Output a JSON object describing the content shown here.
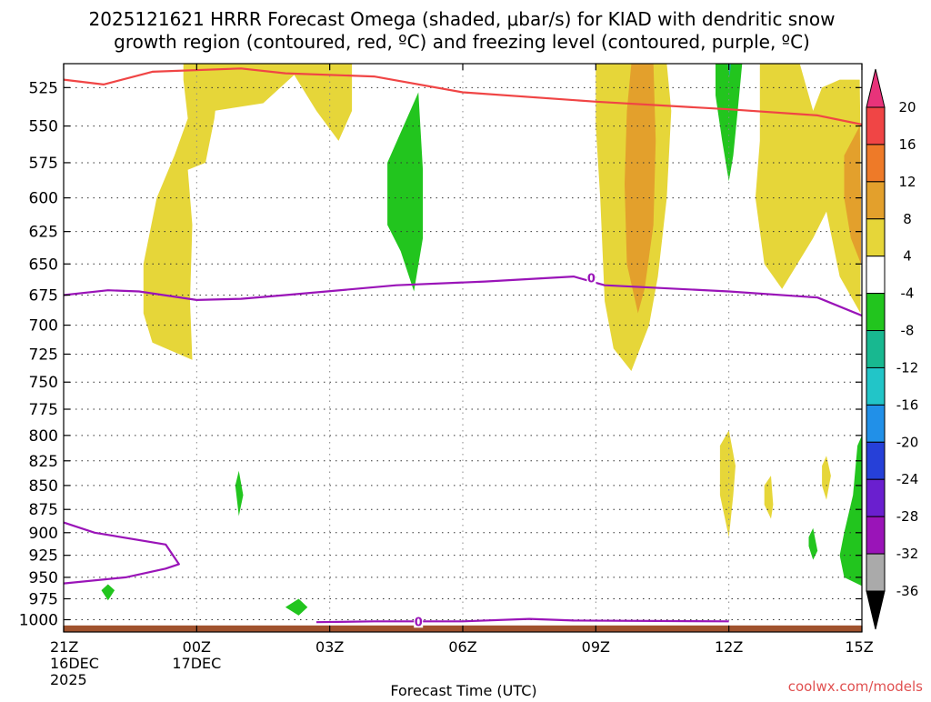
{
  "chart_data": {
    "type": "heatmap",
    "title_line1": "2025121621 HRRR Forecast Omega (shaded, μbar/s) for KIAD with dendritic snow",
    "title_line2": "growth region (contoured, red, ºC) and freezing level (contoured, purple, ºC)",
    "xlabel": "Forecast Time (UTC)",
    "credit": "coolwx.com/models",
    "x_range_hours": [
      0,
      18
    ],
    "y_range_hpa": [
      1015,
      510
    ],
    "y_ticks": [
      525,
      550,
      575,
      600,
      625,
      650,
      675,
      700,
      725,
      750,
      775,
      800,
      825,
      850,
      875,
      900,
      925,
      950,
      975,
      1000
    ],
    "y_tick_labels": [
      "525",
      "550",
      "575",
      "600",
      "625",
      "650",
      "675",
      "700",
      "725",
      "750",
      "775",
      "800",
      "825",
      "850",
      "875",
      "900",
      "925",
      "950",
      "975",
      "1000"
    ],
    "x_ticks": [
      {
        "hour": 0,
        "label": "21Z",
        "sub1": "16DEC",
        "sub2": "2025"
      },
      {
        "hour": 3,
        "label": "00Z",
        "sub1": "17DEC",
        "sub2": ""
      },
      {
        "hour": 6,
        "label": "03Z",
        "sub1": "",
        "sub2": ""
      },
      {
        "hour": 9,
        "label": "06Z",
        "sub1": "",
        "sub2": ""
      },
      {
        "hour": 12,
        "label": "09Z",
        "sub1": "",
        "sub2": ""
      },
      {
        "hour": 15,
        "label": "12Z",
        "sub1": "",
        "sub2": ""
      },
      {
        "hour": 18,
        "label": "15Z",
        "sub1": "",
        "sub2": ""
      }
    ],
    "colorbar": {
      "labels": [
        "20",
        "16",
        "12",
        "8",
        "4",
        "-4",
        "-8",
        "-12",
        "-16",
        "-20",
        "-24",
        "-28",
        "-32",
        "-36"
      ],
      "colors": [
        "#e8337a",
        "#f04545",
        "#ee7a28",
        "#e3a02c",
        "#e6d639",
        "#ffffff",
        "#22c51e",
        "#18b890",
        "#22c5c8",
        "#2190e8",
        "#2640d8",
        "#6a1fcf",
        "#9a14b8",
        "#aaaaaa",
        "#000000"
      ]
    },
    "shading": {
      "colors": {
        "4": "#e6d639",
        "8": "#e3a02c",
        "-4": "#22c51e",
        "-8": "#18b890"
      },
      "regions": [
        {
          "class": "4",
          "points": [
            [
              2.7,
              510
            ],
            [
              3.4,
              510
            ],
            [
              3.5,
              520
            ],
            [
              3.4,
              545
            ],
            [
              3.2,
              575
            ],
            [
              2.8,
              580
            ],
            [
              2.9,
              620
            ],
            [
              2.85,
              680
            ],
            [
              2.9,
              730
            ],
            [
              2.0,
              715
            ],
            [
              1.8,
              690
            ],
            [
              1.8,
              650
            ],
            [
              2.1,
              600
            ],
            [
              2.5,
              570
            ],
            [
              2.8,
              545
            ],
            [
              2.7,
              520
            ]
          ]
        },
        {
          "class": "4",
          "points": [
            [
              3.4,
              510
            ],
            [
              6.5,
              510
            ],
            [
              6.5,
              540
            ],
            [
              6.2,
              560
            ],
            [
              5.7,
              540
            ],
            [
              5.2,
              517
            ],
            [
              4.5,
              535
            ],
            [
              3.4,
              540
            ]
          ]
        },
        {
          "class": "4",
          "points": [
            [
              12.0,
              510
            ],
            [
              13.6,
              510
            ],
            [
              13.7,
              540
            ],
            [
              13.6,
              600
            ],
            [
              13.4,
              660
            ],
            [
              13.2,
              700
            ],
            [
              12.8,
              740
            ],
            [
              12.4,
              720
            ],
            [
              12.2,
              680
            ],
            [
              12.1,
              600
            ],
            [
              12.0,
              550
            ]
          ]
        },
        {
          "class": "8",
          "points": [
            [
              12.8,
              510
            ],
            [
              13.3,
              510
            ],
            [
              13.35,
              560
            ],
            [
              13.3,
              620
            ],
            [
              13.1,
              670
            ],
            [
              12.95,
              690
            ],
            [
              12.7,
              650
            ],
            [
              12.65,
              590
            ],
            [
              12.7,
              540
            ]
          ]
        },
        {
          "class": "4",
          "points": [
            [
              15.7,
              510
            ],
            [
              16.6,
              510
            ],
            [
              16.9,
              540
            ],
            [
              17.1,
              525
            ],
            [
              17.5,
              520
            ],
            [
              17.95,
              520
            ],
            [
              17.97,
              560
            ],
            [
              17.97,
              690
            ],
            [
              17.5,
              660
            ],
            [
              17.2,
              610
            ],
            [
              16.9,
              630
            ],
            [
              16.2,
              670
            ],
            [
              15.8,
              650
            ],
            [
              15.6,
              600
            ],
            [
              15.7,
              560
            ]
          ]
        },
        {
          "class": "8",
          "points": [
            [
              17.6,
              570
            ],
            [
              17.95,
              550
            ],
            [
              17.98,
              600
            ],
            [
              17.98,
              650
            ],
            [
              17.75,
              630
            ],
            [
              17.6,
              600
            ]
          ]
        },
        {
          "class": "-4",
          "points": [
            [
              14.7,
              510
            ],
            [
              15.3,
              510
            ],
            [
              15.2,
              540
            ],
            [
              15.1,
              570
            ],
            [
              15.0,
              588
            ],
            [
              14.85,
              560
            ],
            [
              14.7,
              530
            ]
          ]
        },
        {
          "class": "-8",
          "points": [
            [
              14.97,
              510
            ],
            [
              15.05,
              510
            ],
            [
              15.02,
              518
            ]
          ]
        },
        {
          "class": "-4",
          "points": [
            [
              7.3,
              575
            ],
            [
              8.0,
              528
            ],
            [
              8.1,
              580
            ],
            [
              8.1,
              630
            ],
            [
              7.9,
              672
            ],
            [
              7.6,
              640
            ],
            [
              7.3,
              620
            ]
          ]
        },
        {
          "class": "-4",
          "points": [
            [
              3.87,
              850
            ],
            [
              3.95,
              835
            ],
            [
              4.05,
              860
            ],
            [
              3.95,
              882
            ]
          ]
        },
        {
          "class": "-4",
          "points": [
            [
              5.0,
              985
            ],
            [
              5.3,
              975
            ],
            [
              5.5,
              985
            ],
            [
              5.3,
              995
            ]
          ]
        },
        {
          "class": "-4",
          "points": [
            [
              0.85,
              965
            ],
            [
              1.0,
              958
            ],
            [
              1.15,
              965
            ],
            [
              1.0,
              977
            ]
          ]
        },
        {
          "class": "4",
          "points": [
            [
              14.8,
              810
            ],
            [
              15.0,
              795
            ],
            [
              15.15,
              830
            ],
            [
              15.1,
              860
            ],
            [
              15.0,
              905
            ],
            [
              14.8,
              860
            ]
          ]
        },
        {
          "class": "4",
          "points": [
            [
              15.8,
              850
            ],
            [
              15.95,
              840
            ],
            [
              16.0,
              870
            ],
            [
              15.95,
              885
            ],
            [
              15.8,
              870
            ]
          ]
        },
        {
          "class": "4",
          "points": [
            [
              17.1,
              830
            ],
            [
              17.2,
              820
            ],
            [
              17.3,
              840
            ],
            [
              17.2,
              865
            ],
            [
              17.1,
              850
            ]
          ]
        },
        {
          "class": "-4",
          "points": [
            [
              16.8,
              905
            ],
            [
              16.9,
              895
            ],
            [
              17.0,
              920
            ],
            [
              16.9,
              930
            ],
            [
              16.8,
              915
            ]
          ]
        },
        {
          "class": "-4",
          "points": [
            [
              18.0,
              800
            ],
            [
              17.9,
              810
            ],
            [
              17.8,
              860
            ],
            [
              17.6,
              900
            ],
            [
              17.5,
              925
            ],
            [
              17.6,
              950
            ],
            [
              18.0,
              960
            ]
          ]
        }
      ]
    },
    "series": [
      {
        "name": "dendritic snow growth region (red, ºC)",
        "color": "#f04545",
        "points": [
          [
            0,
            520
          ],
          [
            0.9,
            523
          ],
          [
            2.0,
            515
          ],
          [
            4.0,
            513
          ],
          [
            5.0,
            516
          ],
          [
            7.0,
            518
          ],
          [
            9.0,
            528
          ],
          [
            12.0,
            534
          ],
          [
            15.0,
            539
          ],
          [
            17.0,
            543
          ],
          [
            18,
            549
          ]
        ]
      },
      {
        "name": "freezing level (purple, ºC)",
        "color": "#9a14b8",
        "points": [
          [
            0,
            675
          ],
          [
            1.0,
            671
          ],
          [
            1.7,
            672
          ],
          [
            3.0,
            679
          ],
          [
            4.0,
            678
          ],
          [
            5.0,
            675
          ],
          [
            7.5,
            667
          ],
          [
            9.5,
            664
          ],
          [
            11.5,
            660
          ],
          [
            12.2,
            667
          ],
          [
            15.0,
            672
          ],
          [
            17.0,
            677
          ],
          [
            18,
            692
          ]
        ]
      },
      {
        "name": "freezing level lower (purple, ºC)",
        "color": "#9a14b8",
        "points": [
          [
            0,
            889
          ],
          [
            0.7,
            900
          ],
          [
            2.3,
            913
          ],
          [
            2.6,
            935
          ],
          [
            2.3,
            940
          ],
          [
            1.4,
            950
          ],
          [
            0,
            957
          ]
        ]
      },
      {
        "name": "freezing level surface (purple, ºC)",
        "color": "#9a14b8",
        "points": [
          [
            5.7,
            1003
          ],
          [
            7.0,
            1002
          ],
          [
            9.0,
            1002
          ],
          [
            10.5,
            999
          ],
          [
            11.5,
            1001
          ],
          [
            15.0,
            1002
          ]
        ]
      }
    ],
    "contour_labels": [
      {
        "text": "0",
        "x": 11.9,
        "y": 661
      },
      {
        "text": "0",
        "x": 8.0,
        "y": 1002
      }
    ],
    "surface_band": {
      "color": "#a0522d",
      "top_hpa": 1007,
      "bottom_hpa": 1015
    }
  }
}
